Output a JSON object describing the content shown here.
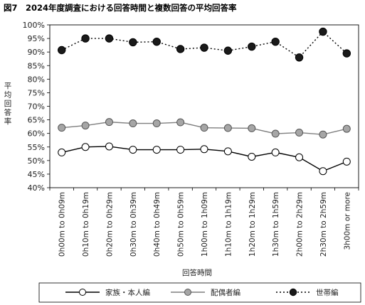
{
  "chart_data": {
    "type": "line",
    "title": "図7　2024年度調査における回答時間と複数回答の平均回答率",
    "xlabel": "回答時間",
    "ylabel": "平均回答率",
    "ylim": [
      0.4,
      1.0
    ],
    "yticks": [
      "40%",
      "45%",
      "50%",
      "55%",
      "60%",
      "65%",
      "70%",
      "75%",
      "80%",
      "85%",
      "90%",
      "95%",
      "100%"
    ],
    "categories": [
      "0h00m to 0h09m",
      "0h10m to 0h19m",
      "0h20m to 0h29m",
      "0h30m to 0h39m",
      "0h40m to 0h49m",
      "0h50m to 0h59m",
      "1h00m to 1h09m",
      "1h10m to 1h19m",
      "1h20m to 1h29m",
      "1h30m to 1h59m",
      "2h00m to 2h29m",
      "2h30m to 2h59m",
      "3h00m or more"
    ],
    "series": [
      {
        "name": "家族・本人編",
        "style": "solid-black-open-marker",
        "values": [
          0.53,
          0.55,
          0.552,
          0.54,
          0.54,
          0.54,
          0.542,
          0.534,
          0.514,
          0.53,
          0.512,
          0.461,
          0.496
        ]
      },
      {
        "name": "配偶者編",
        "style": "solid-gray-gray-marker",
        "values": [
          0.621,
          0.629,
          0.642,
          0.637,
          0.637,
          0.641,
          0.621,
          0.62,
          0.619,
          0.599,
          0.603,
          0.596,
          0.617
        ]
      },
      {
        "name": "世帯編",
        "style": "dotted-black-filled-marker",
        "values": [
          0.907,
          0.95,
          0.95,
          0.936,
          0.938,
          0.911,
          0.916,
          0.905,
          0.92,
          0.938,
          0.88,
          0.975,
          0.895
        ]
      }
    ],
    "grid": false,
    "legend_position": "bottom",
    "colors": {
      "series1": "#000000",
      "series2": "#7f7f7f",
      "series3": "#000000",
      "marker2": "#a6a6a6"
    }
  }
}
